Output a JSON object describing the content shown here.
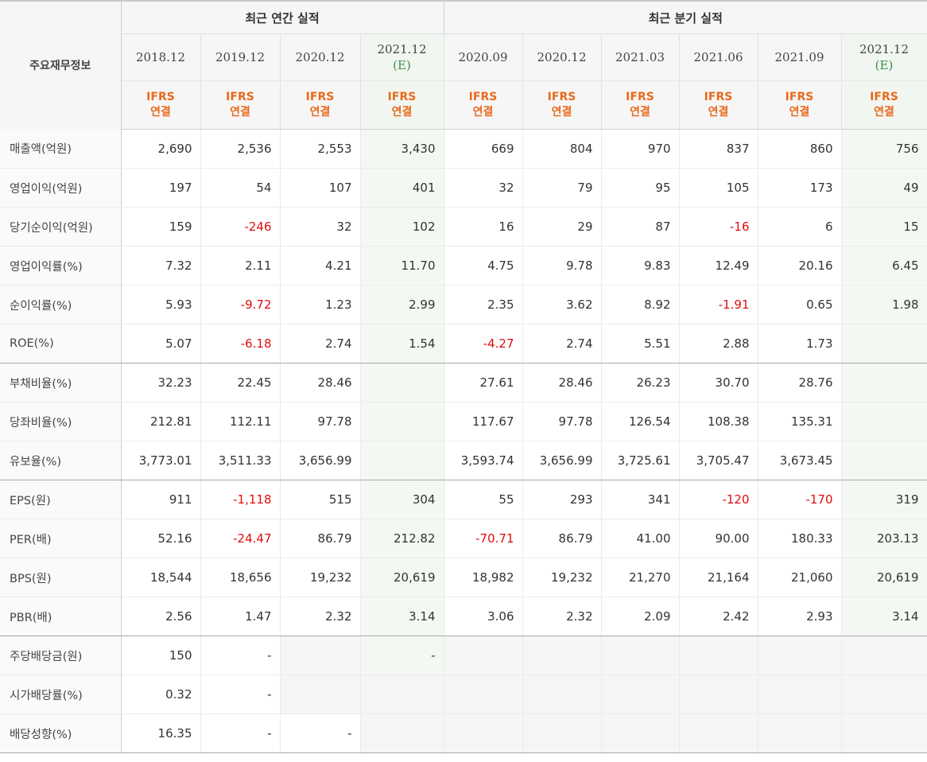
{
  "header": {
    "corner_label": "주요재무정보",
    "annual_title": "최근 연간 실적",
    "quarterly_title": "최근 분기 실적",
    "ifrs_line1": "IFRS",
    "ifrs_line2": "연결",
    "columns": [
      {
        "date": "2018.12",
        "est": ""
      },
      {
        "date": "2019.12",
        "est": ""
      },
      {
        "date": "2020.12",
        "est": ""
      },
      {
        "date": "2021.12",
        "est": "(E)"
      },
      {
        "date": "2020.09",
        "est": ""
      },
      {
        "date": "2020.12",
        "est": ""
      },
      {
        "date": "2021.03",
        "est": ""
      },
      {
        "date": "2021.06",
        "est": ""
      },
      {
        "date": "2021.09",
        "est": ""
      },
      {
        "date": "2021.12",
        "est": "(E)"
      }
    ]
  },
  "rows": [
    {
      "label": "매출액(억원)",
      "values": [
        "2,690",
        "2,536",
        "2,553",
        "3,430",
        "669",
        "804",
        "970",
        "837",
        "860",
        "756"
      ]
    },
    {
      "label": "영업이익(억원)",
      "values": [
        "197",
        "54",
        "107",
        "401",
        "32",
        "79",
        "95",
        "105",
        "173",
        "49"
      ]
    },
    {
      "label": "당기순이익(억원)",
      "values": [
        "159",
        "-246",
        "32",
        "102",
        "16",
        "29",
        "87",
        "-16",
        "6",
        "15"
      ]
    },
    {
      "label": "영업이익률(%)",
      "values": [
        "7.32",
        "2.11",
        "4.21",
        "11.70",
        "4.75",
        "9.78",
        "9.83",
        "12.49",
        "20.16",
        "6.45"
      ]
    },
    {
      "label": "순이익률(%)",
      "values": [
        "5.93",
        "-9.72",
        "1.23",
        "2.99",
        "2.35",
        "3.62",
        "8.92",
        "-1.91",
        "0.65",
        "1.98"
      ]
    },
    {
      "label": "ROE(%)",
      "values": [
        "5.07",
        "-6.18",
        "2.74",
        "1.54",
        "-4.27",
        "2.74",
        "5.51",
        "2.88",
        "1.73",
        ""
      ]
    },
    {
      "label": "부채비율(%)",
      "values": [
        "32.23",
        "22.45",
        "28.46",
        "",
        "27.61",
        "28.46",
        "26.23",
        "30.70",
        "28.76",
        ""
      ]
    },
    {
      "label": "당좌비율(%)",
      "values": [
        "212.81",
        "112.11",
        "97.78",
        "",
        "117.67",
        "97.78",
        "126.54",
        "108.38",
        "135.31",
        ""
      ]
    },
    {
      "label": "유보율(%)",
      "values": [
        "3,773.01",
        "3,511.33",
        "3,656.99",
        "",
        "3,593.74",
        "3,656.99",
        "3,725.61",
        "3,705.47",
        "3,673.45",
        ""
      ]
    },
    {
      "label": "EPS(원)",
      "values": [
        "911",
        "-1,118",
        "515",
        "304",
        "55",
        "293",
        "341",
        "-120",
        "-170",
        "319"
      ]
    },
    {
      "label": "PER(배)",
      "values": [
        "52.16",
        "-24.47",
        "86.79",
        "212.82",
        "-70.71",
        "86.79",
        "41.00",
        "90.00",
        "180.33",
        "203.13"
      ]
    },
    {
      "label": "BPS(원)",
      "values": [
        "18,544",
        "18,656",
        "19,232",
        "20,619",
        "18,982",
        "19,232",
        "21,270",
        "21,164",
        "21,060",
        "20,619"
      ]
    },
    {
      "label": "PBR(배)",
      "values": [
        "2.56",
        "1.47",
        "2.32",
        "3.14",
        "3.06",
        "2.32",
        "2.09",
        "2.42",
        "2.93",
        "3.14"
      ]
    },
    {
      "label": "주당배당금(원)",
      "values": [
        "150",
        "-",
        "",
        "-",
        "",
        "",
        "",
        "",
        "",
        ""
      ]
    },
    {
      "label": "시가배당률(%)",
      "values": [
        "0.32",
        "-",
        "",
        "",
        "",
        "",
        "",
        "",
        "",
        ""
      ]
    },
    {
      "label": "배당성향(%)",
      "values": [
        "16.35",
        "-",
        "-",
        "",
        "",
        "",
        "",
        "",
        "",
        ""
      ]
    }
  ],
  "colors": {
    "negative": "#e00d0d",
    "ifrs": "#e96a1c",
    "estimate": "#3b8f4a"
  }
}
